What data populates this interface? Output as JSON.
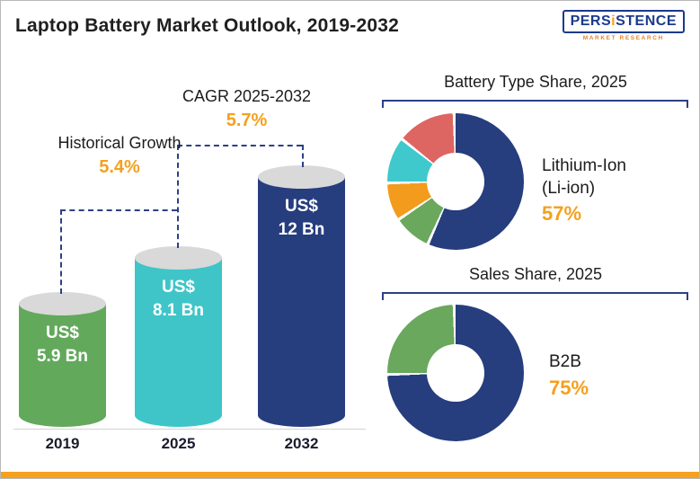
{
  "header": {
    "title": "Laptop Battery Market Outlook, 2019-2032",
    "logo": {
      "part1": "PERS",
      "part2": "i",
      "part3": "STENCE",
      "subtitle": "MARKET RESEARCH"
    }
  },
  "colors": {
    "accent_orange": "#f5a01e",
    "brand_navy": "#1b3a8c",
    "dashed_line_navy": "#2b4086"
  },
  "chart_data": [
    {
      "type": "bar",
      "title": "Laptop Battery Market Outlook, 2019-2032",
      "categories": [
        "2019",
        "2025",
        "2032"
      ],
      "values": [
        5.9,
        8.1,
        12
      ],
      "unit": "US$ Bn",
      "ylim": [
        0,
        12
      ],
      "bar_labels": [
        {
          "line1": "US$",
          "line2": "5.9 Bn"
        },
        {
          "line1": "US$",
          "line2": "8.1 Bn"
        },
        {
          "line1": "US$",
          "line2": "12 Bn"
        }
      ],
      "bar_colors": [
        "#62a95c",
        "#3fc5c8",
        "#263d7e"
      ],
      "annotations": [
        {
          "label": "Historical Growth",
          "value": "5.4%"
        },
        {
          "label": "CAGR 2025-2032",
          "value": "5.7%"
        }
      ]
    },
    {
      "type": "pie",
      "title": "Battery Type Share, 2025",
      "segments": [
        {
          "label": "Lithium-Ion (Li-ion)",
          "value": 57,
          "color": "#263d7e"
        },
        {
          "label": "",
          "value": 9,
          "color": "#6aa85d"
        },
        {
          "label": "",
          "value": 9,
          "color": "#f39b1d"
        },
        {
          "label": "",
          "value": 11,
          "color": "#3fc9cc"
        },
        {
          "label": "",
          "value": 14,
          "color": "#dd6662"
        }
      ],
      "callout": {
        "label_line1": "Lithium-Ion",
        "label_line2": "(Li-ion)",
        "value": "57%"
      }
    },
    {
      "type": "pie",
      "title": "Sales Share, 2025",
      "segments": [
        {
          "label": "B2B",
          "value": 75,
          "color": "#263d7e"
        },
        {
          "label": "",
          "value": 25,
          "color": "#6aa85d"
        }
      ],
      "callout": {
        "label_line1": "B2B",
        "value": "75%"
      }
    }
  ]
}
